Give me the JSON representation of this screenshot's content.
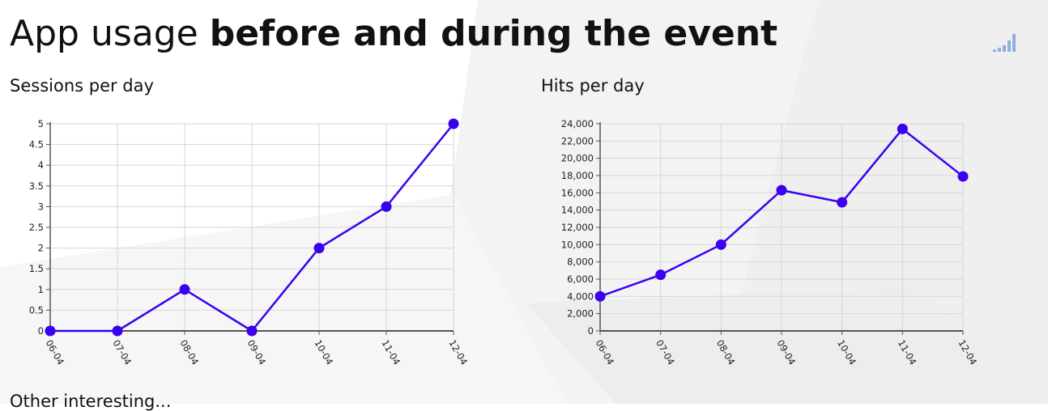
{
  "header": {
    "title_regular": "App usage ",
    "title_bold": "before and during the event"
  },
  "brand": {
    "icon": "signal-bars-icon",
    "color": "#8fb0dc"
  },
  "colors": {
    "line": "#3a00f0",
    "axis": "#555555",
    "grid": "#d6d6d6"
  },
  "chart_data": [
    {
      "type": "line",
      "title": "Sessions per day",
      "categories": [
        "06-04",
        "07-04",
        "08-04",
        "09-04",
        "10-04",
        "11-04",
        "12-04"
      ],
      "series": [
        {
          "values": [
            0,
            0,
            1,
            0,
            2,
            3,
            5
          ]
        }
      ],
      "yticks": [
        "0",
        "0.5",
        "1",
        "1.5",
        "2",
        "2.5",
        "3",
        "3.5",
        "4",
        "4.5",
        "5"
      ],
      "ylim": [
        0,
        5
      ],
      "grid": true
    },
    {
      "type": "line",
      "title": "Hits per day",
      "categories": [
        "06-04",
        "07-04",
        "08-04",
        "09-04",
        "10-04",
        "11-04",
        "12-04"
      ],
      "series": [
        {
          "values": [
            4000,
            6500,
            10000,
            16300,
            14900,
            23400,
            17900
          ]
        }
      ],
      "yticks": [
        "0",
        "2,000",
        "4,000",
        "6,000",
        "8,000",
        "10,000",
        "12,000",
        "14,000",
        "16,000",
        "18,000",
        "20,000",
        "22,000",
        "24,000"
      ],
      "ylim": [
        0,
        24000
      ],
      "grid": true
    }
  ],
  "footer": {
    "partial_label": "Other interesting..."
  }
}
